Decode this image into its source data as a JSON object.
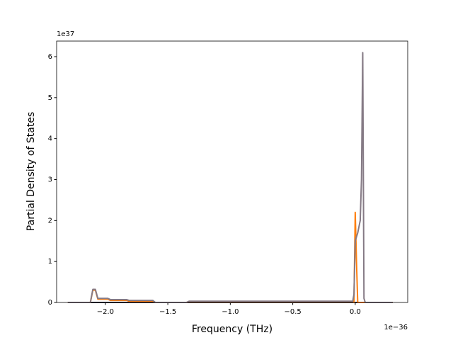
{
  "chart_data": {
    "type": "line",
    "xlabel": "Frequency (THz)",
    "ylabel": "Partial Density of States",
    "x_offset_label": "1e−36",
    "y_offset_label": "1e37",
    "x": [
      -2.3,
      -2.12,
      -2.1,
      -2.08,
      -2.06,
      -2.05,
      -1.98,
      -1.96,
      -1.83,
      -1.81,
      -1.62,
      -1.6,
      -1.35,
      -1.33,
      -0.02,
      -0.01,
      0.0,
      0.01,
      0.02,
      0.04,
      0.05,
      0.06,
      0.07,
      0.08,
      0.3
    ],
    "series": [
      {
        "color": "#2b2b3b",
        "values": [
          0,
          0,
          0,
          0,
          0,
          0,
          0,
          0,
          0,
          0,
          0,
          0,
          0,
          0,
          0,
          0,
          0,
          0,
          0,
          0,
          0,
          0,
          0,
          0,
          0
        ]
      },
      {
        "color": "#ff7f0e",
        "values": [
          0,
          0,
          0.3,
          0.3,
          0.08,
          0.08,
          0.08,
          0.05,
          0.05,
          0.03,
          0.03,
          0,
          0,
          0.02,
          0.02,
          0,
          2.2,
          1.0,
          0,
          0,
          0,
          0,
          0,
          0,
          0
        ]
      },
      {
        "color": "#857a85",
        "values": [
          0,
          0,
          0.32,
          0.32,
          0.1,
          0.1,
          0.1,
          0.07,
          0.07,
          0.05,
          0.05,
          0,
          0,
          0.03,
          0.03,
          0.2,
          1.5,
          1.6,
          1.7,
          2.0,
          3.0,
          6.1,
          0.1,
          0,
          0
        ]
      }
    ],
    "xlim": [
      -2.39,
      0.42
    ],
    "xticks": [
      {
        "value": -2,
        "label": "−2.0"
      },
      {
        "value": -1.5,
        "label": "−1.5"
      },
      {
        "value": -1,
        "label": "−1.0"
      },
      {
        "value": -0.5,
        "label": "−0.5"
      },
      {
        "value": 0,
        "label": "0.0"
      }
    ],
    "ylim": [
      0,
      6.38
    ],
    "yticks": [
      0,
      1,
      2,
      3,
      4,
      5,
      6
    ]
  }
}
